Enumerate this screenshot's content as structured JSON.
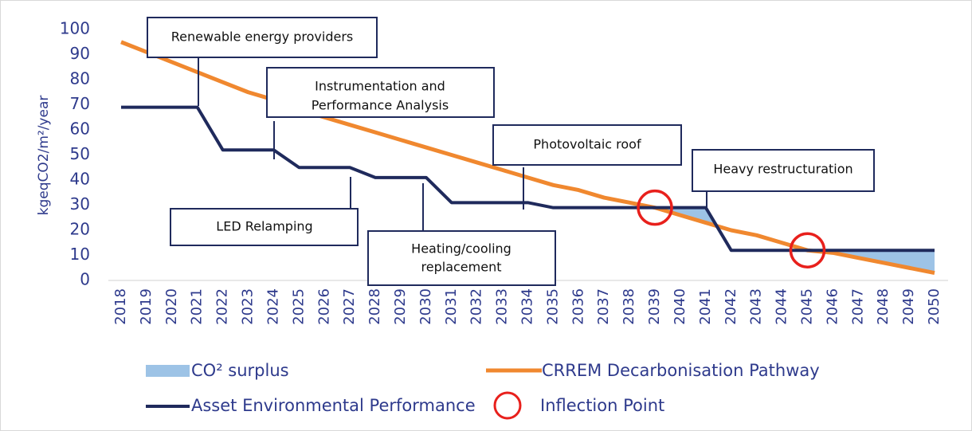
{
  "chart_data": {
    "type": "line",
    "y_label": "kgeqCO2/m²/year",
    "categories": [
      "2018",
      "2019",
      "2020",
      "2021",
      "2022",
      "2023",
      "2024",
      "2025",
      "2026",
      "2027",
      "2028",
      "2029",
      "2030",
      "2031",
      "2032",
      "2033",
      "2034",
      "2035",
      "2036",
      "2037",
      "2038",
      "2039",
      "2040",
      "2041",
      "2042",
      "2043",
      "2044",
      "2045",
      "2046",
      "2047",
      "2048",
      "2049",
      "2050"
    ],
    "series": [
      {
        "name": "Asset Environmental Performance",
        "color": "#1f2a5c",
        "values": [
          69,
          69,
          69,
          69,
          52,
          52,
          52,
          45,
          45,
          45,
          41,
          41,
          41,
          31,
          31,
          31,
          31,
          29,
          29,
          29,
          29,
          29,
          29,
          29,
          12,
          12,
          12,
          12,
          12,
          12,
          12,
          12,
          12
        ]
      },
      {
        "name": "CRREM Decarbonisation Pathway",
        "color": "#f0882f",
        "values": [
          95,
          91,
          87,
          83,
          79,
          75,
          72,
          68,
          65,
          62,
          59,
          56,
          53,
          50,
          47,
          44,
          41,
          38,
          36,
          33,
          31,
          29,
          26,
          23,
          20,
          18,
          15,
          12,
          11,
          9,
          7,
          5,
          3
        ]
      }
    ],
    "surplus": {
      "name": "CO² surplus",
      "color": "#9dc3e6"
    },
    "inflection": {
      "name": "Inflection Point",
      "color": "#e8201c",
      "points": [
        {
          "x": "2039",
          "y": 29
        },
        {
          "x": "2045",
          "y": 12
        }
      ]
    },
    "ylim": [
      0,
      100
    ],
    "yticks": [
      0,
      10,
      20,
      30,
      40,
      50,
      60,
      70,
      80,
      90,
      100
    ],
    "annotations": [
      {
        "lines": [
          "Renewable energy providers"
        ]
      },
      {
        "lines": [
          "Instrumentation and",
          "Performance Analysis"
        ]
      },
      {
        "lines": [
          "Photovoltaic roof"
        ]
      },
      {
        "lines": [
          "Heavy restructuration"
        ]
      },
      {
        "lines": [
          "LED Relamping"
        ]
      },
      {
        "lines": [
          "Heating/cooling",
          "replacement"
        ]
      }
    ]
  }
}
